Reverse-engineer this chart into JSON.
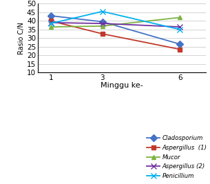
{
  "x": [
    1,
    3,
    6
  ],
  "series": {
    "Cladosporium": {
      "values": [
        43,
        39.5,
        26.5
      ],
      "color": "#4472C4",
      "marker": "D",
      "markersize": 5,
      "linestyle": "-"
    },
    "Aspergillus  (1)": {
      "values": [
        40,
        32.5,
        23.5
      ],
      "color": "#C0392B",
      "marker": "s",
      "markersize": 5,
      "linestyle": "-"
    },
    "Mucor": {
      "values": [
        36.5,
        37,
        42
      ],
      "color": "#7CB342",
      "marker": "^",
      "markersize": 5,
      "linestyle": "-"
    },
    "Aspergillus (2)": {
      "values": [
        39,
        38.5,
        36.5
      ],
      "color": "#7030A0",
      "marker": "x",
      "markersize": 6,
      "linestyle": "-"
    },
    "Penicillium": {
      "values": [
        38.5,
        45.5,
        35
      ],
      "color": "#00B0F0",
      "marker": "x",
      "markersize": 6,
      "linestyle": "-"
    }
  },
  "xlabel": "Minggu ke-",
  "ylabel": "Rasio C/N",
  "ylim": [
    10,
    50
  ],
  "yticks": [
    10,
    15,
    20,
    25,
    30,
    35,
    40,
    45,
    50
  ],
  "xticks": [
    1,
    3,
    6
  ],
  "xlim": [
    0.5,
    7.0
  ]
}
